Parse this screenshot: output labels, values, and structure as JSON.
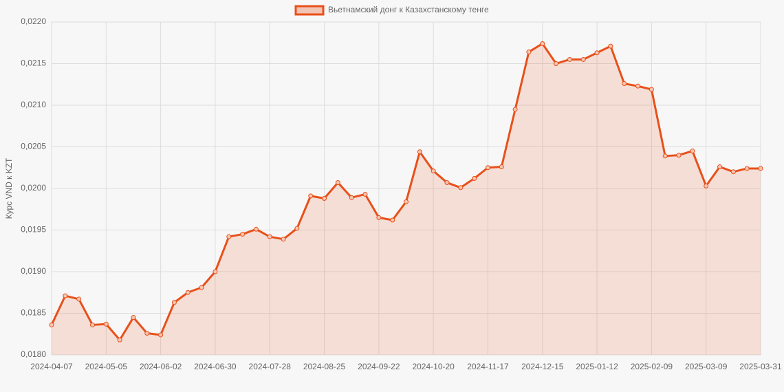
{
  "chart_data": {
    "type": "line",
    "y_label": "Курс VND к KZT",
    "categories": [
      "2024-04-07",
      null,
      null,
      null,
      "2024-05-05",
      null,
      null,
      null,
      "2024-06-02",
      null,
      null,
      null,
      "2024-06-30",
      null,
      null,
      null,
      "2024-07-28",
      null,
      null,
      null,
      "2024-08-25",
      null,
      null,
      null,
      "2024-09-22",
      null,
      null,
      null,
      "2024-10-20",
      null,
      null,
      null,
      "2024-11-17",
      null,
      null,
      null,
      "2024-12-15",
      null,
      null,
      null,
      "2025-01-12",
      null,
      null,
      null,
      "2025-02-09",
      null,
      null,
      null,
      "2025-03-09",
      null,
      null,
      null,
      "2025-03-31"
    ],
    "series": [
      {
        "name": "Вьетнамский донг к Казахстанскому тенге",
        "color": "#e8501a",
        "values": [
          0.01836,
          0.01871,
          0.01867,
          0.01836,
          0.01837,
          0.01818,
          0.01845,
          0.01826,
          0.01824,
          0.01863,
          0.01875,
          0.01881,
          0.019,
          0.01942,
          0.01945,
          0.01951,
          0.01942,
          0.01939,
          0.01952,
          0.01991,
          0.01988,
          0.02007,
          0.01989,
          0.01993,
          0.01965,
          0.01962,
          0.01984,
          0.02044,
          0.02021,
          0.02007,
          0.02001,
          0.02012,
          0.02025,
          0.02026,
          0.02095,
          0.02164,
          0.02174,
          0.0215,
          0.02155,
          0.02155,
          0.02163,
          0.02171,
          0.02126,
          0.02123,
          0.02119,
          0.02039,
          0.0204,
          0.02045,
          0.02003,
          0.02026,
          0.0202,
          0.02024,
          0.02024
        ]
      }
    ],
    "ylim": [
      0.018,
      0.022
    ],
    "yticks": [
      {
        "value": 0.018,
        "label": "0,0180"
      },
      {
        "value": 0.0185,
        "label": "0,0185"
      },
      {
        "value": 0.019,
        "label": "0,0190"
      },
      {
        "value": 0.0195,
        "label": "0,0195"
      },
      {
        "value": 0.02,
        "label": "0,0200"
      },
      {
        "value": 0.0205,
        "label": "0,0205"
      },
      {
        "value": 0.021,
        "label": "0,0210"
      },
      {
        "value": 0.0215,
        "label": "0,0215"
      },
      {
        "value": 0.022,
        "label": "0,0220"
      }
    ],
    "grid": true,
    "legend": "top"
  }
}
